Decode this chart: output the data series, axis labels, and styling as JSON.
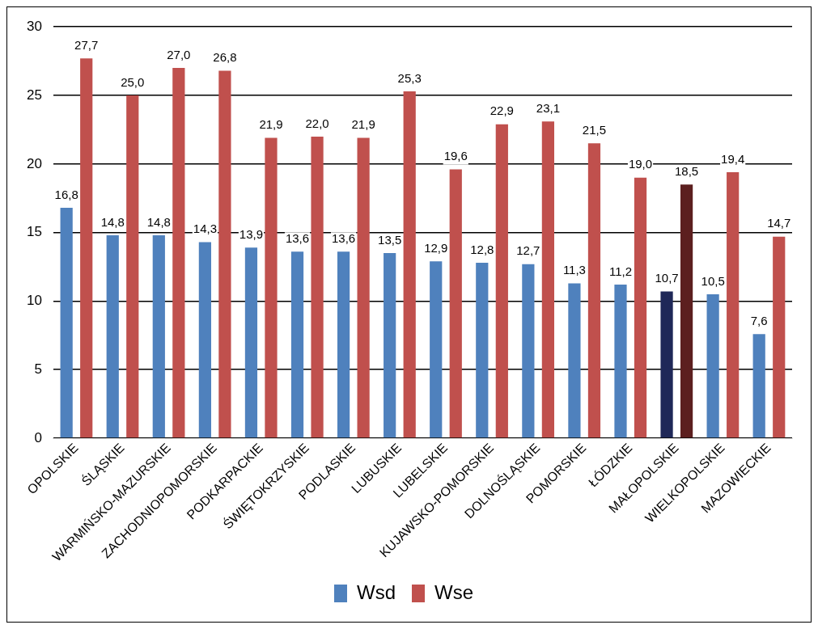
{
  "chart_data": {
    "type": "bar",
    "categories": [
      "OPOLSKIE",
      "ŚLĄSKIE",
      "WARMIŃSKO-MAZURSKIE",
      "ZACHODNIOPOMORSKIE",
      "PODKARPACKIE",
      "ŚWIĘTOKRZYSKIE",
      "PODLASKIE",
      "LUBUSKIE",
      "LUBELSKIE",
      "KUJAWSKO-POMORSKIE",
      "DOLNOŚLĄSKIE",
      "POMORSKIE",
      "ŁÓDZKIE",
      "MAŁOPOLSKIE",
      "WIELKOPOLSKIE",
      "MAZOWIECKIE"
    ],
    "series": [
      {
        "name": "Wsd",
        "color": "#4f81bd",
        "colors": [
          "#4f81bd",
          "#4f81bd",
          "#4f81bd",
          "#4f81bd",
          "#4f81bd",
          "#4f81bd",
          "#4f81bd",
          "#4f81bd",
          "#4f81bd",
          "#4f81bd",
          "#4f81bd",
          "#4f81bd",
          "#4f81bd",
          "#1f2858",
          "#4f81bd",
          "#4f81bd"
        ],
        "values": [
          16.8,
          14.8,
          14.8,
          14.3,
          13.9,
          13.6,
          13.6,
          13.5,
          12.9,
          12.8,
          12.7,
          11.3,
          11.2,
          10.7,
          10.5,
          7.6
        ],
        "value_labels": [
          "16,8",
          "14,8",
          "14,8",
          "14,3",
          "13,9",
          "13,6",
          "13,6",
          "13,5",
          "12,9",
          "12,8",
          "12,7",
          "11,3",
          "11,2",
          "10,7",
          "10,5",
          "7,6"
        ]
      },
      {
        "name": "Wse",
        "color": "#c0504d",
        "colors": [
          "#c0504d",
          "#c0504d",
          "#c0504d",
          "#c0504d",
          "#c0504d",
          "#c0504d",
          "#c0504d",
          "#c0504d",
          "#c0504d",
          "#c0504d",
          "#c0504d",
          "#c0504d",
          "#c0504d",
          "#5c1f1f",
          "#c0504d",
          "#c0504d"
        ],
        "values": [
          27.7,
          25.0,
          27.0,
          26.8,
          21.9,
          22.0,
          21.9,
          25.3,
          19.6,
          22.9,
          23.1,
          21.5,
          19.0,
          18.5,
          19.4,
          14.7
        ],
        "value_labels": [
          "27,7",
          "25,0",
          "27,0",
          "26,8",
          "21,9",
          "22,0",
          "21,9",
          "25,3",
          "19,6",
          "22,9",
          "23,1",
          "21,5",
          "19,0",
          "18,5",
          "19,4",
          "14,7"
        ]
      }
    ],
    "ylim": [
      0,
      30
    ],
    "yticks": [
      0,
      5,
      10,
      15,
      20,
      25,
      30
    ],
    "grid": "y",
    "legend": "bottom"
  }
}
